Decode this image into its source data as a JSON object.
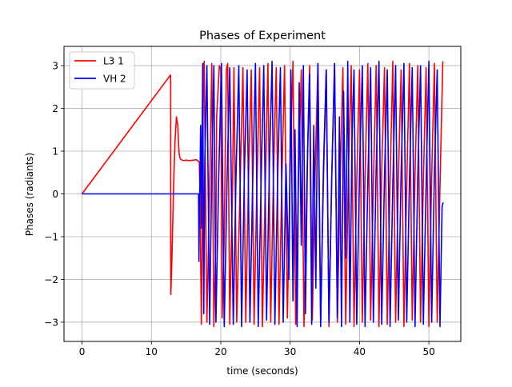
{
  "chart_data": {
    "type": "line",
    "title": "Phases of Experiment",
    "xlabel": "time  (seconds)",
    "ylabel": "Phases (radiants)",
    "xlim": [
      -2.6,
      54.6
    ],
    "ylim": [
      -3.45,
      3.45
    ],
    "x_ticks": [
      0,
      10,
      20,
      30,
      40,
      50
    ],
    "y_ticks": [
      -3,
      -2,
      -1,
      0,
      1,
      2,
      3
    ],
    "grid": true,
    "legend_position": "top-left",
    "series": [
      {
        "name": "L3 1",
        "color": "#ff0000",
        "x": [
          0,
          12.75,
          12.78,
          12.8,
          12.95,
          13.2,
          13.4,
          13.6,
          13.8,
          13.9,
          14.0,
          14.1,
          14.3,
          14.6,
          15.0,
          15.5,
          16.0,
          16.5,
          16.9,
          17.0,
          17.2,
          17.3,
          17.5,
          17.6,
          18.0,
          18.1,
          18.5,
          18.7,
          19.0,
          19.3,
          19.4,
          19.8,
          20.0,
          20.2,
          20.5,
          20.8,
          21.0,
          21.3,
          21.7,
          21.9,
          22.3,
          22.8,
          23.2,
          23.6,
          24.0,
          24.4,
          24.8,
          25.2,
          25.6,
          26.0,
          26.4,
          26.8,
          27.2,
          27.6,
          28.0,
          28.4,
          28.8,
          29.2,
          29.6,
          30.0,
          30.4,
          30.8,
          31.2,
          31.6,
          32.0,
          32.4,
          32.8,
          33.2,
          33.6,
          34.0,
          34.4,
          34.8,
          35.2,
          35.6,
          36.0,
          36.4,
          36.8,
          37.2,
          37.6,
          38.0,
          38.4,
          38.8,
          39.2,
          39.6,
          40.0,
          40.4,
          40.8,
          41.2,
          41.6,
          42.0,
          42.4,
          42.8,
          43.2,
          43.6,
          44.0,
          44.4,
          44.8,
          45.2,
          45.6,
          46.0,
          46.4,
          46.8,
          47.2,
          47.6,
          48.0,
          48.4,
          48.8,
          49.2,
          49.6,
          50.0,
          50.4,
          50.8,
          51.2,
          51.6,
          52.0
        ],
        "y": [
          0,
          2.78,
          2.6,
          -2.35,
          -1.6,
          0.2,
          1.2,
          1.8,
          1.6,
          1.2,
          0.95,
          0.85,
          0.8,
          0.78,
          0.79,
          0.78,
          0.79,
          0.8,
          0.74,
          -0.05,
          -3.05,
          -1.5,
          2.95,
          3.1,
          -3.0,
          -2.2,
          1.1,
          3.05,
          -3.1,
          -1.0,
          1.8,
          3.0,
          2.9,
          -2.9,
          -1.0,
          2.9,
          3.05,
          -3.05,
          0.2,
          2.95,
          -3.0,
          0.3,
          2.95,
          -3.0,
          0.4,
          2.9,
          -3.05,
          0.2,
          2.95,
          -3.1,
          0.1,
          3.05,
          -3.0,
          0.5,
          2.95,
          -3.05,
          0.3,
          3.0,
          -2.9,
          0.6,
          3.1,
          -3.05,
          0.4,
          2.9,
          -3.1,
          0.2,
          3.0,
          -2.95,
          0.5,
          3.05,
          -3.0,
          0.3,
          2.9,
          -3.1,
          0.4,
          3.05,
          -3.0,
          0.2,
          2.95,
          -3.05,
          0.5,
          3.0,
          -3.1,
          0.3,
          2.9,
          -3.0,
          0.4,
          3.05,
          -2.95,
          0.2,
          3.0,
          -3.1,
          0.5,
          2.95,
          -3.05,
          0.3,
          3.1,
          -3.0,
          0.4,
          2.9,
          -3.1,
          0.2,
          3.05,
          -2.95,
          0.5,
          3.0,
          -3.0,
          0.3,
          2.95,
          -3.1,
          0.4,
          3.05,
          -3.0,
          0.2,
          3.1
        ]
      },
      {
        "name": "VH 2",
        "color": "#0000ff",
        "x": [
          0,
          16.8,
          16.85,
          16.9,
          17.0,
          17.1,
          17.2,
          17.4,
          17.55,
          17.7,
          18.0,
          18.4,
          18.7,
          19.0,
          19.3,
          19.7,
          20.1,
          20.5,
          20.9,
          21.3,
          21.8,
          22.2,
          22.6,
          23.0,
          23.4,
          23.8,
          24.2,
          24.6,
          25.0,
          25.4,
          25.8,
          26.2,
          26.6,
          27.0,
          27.4,
          27.8,
          28.2,
          28.6,
          29.0,
          29.4,
          29.8,
          30.1,
          30.4,
          30.7,
          31.0,
          31.3,
          31.6,
          31.9,
          32.2,
          32.5,
          32.8,
          33.1,
          33.4,
          33.7,
          34.0,
          34.4,
          34.8,
          35.2,
          35.6,
          36.0,
          36.4,
          36.8,
          37.1,
          37.4,
          37.7,
          38.0,
          38.3,
          38.6,
          38.9,
          39.2,
          39.6,
          40.0,
          40.4,
          40.8,
          41.2,
          41.6,
          42.0,
          42.4,
          42.8,
          43.2,
          43.6,
          44.0,
          44.4,
          44.8,
          45.2,
          45.6,
          46.0,
          46.4,
          46.8,
          47.2,
          47.6,
          48.0,
          48.4,
          48.8,
          49.2,
          49.6,
          50.0,
          50.4,
          50.8,
          51.2,
          51.6,
          51.9,
          52.05
        ],
        "y": [
          0,
          0,
          -1.58,
          -0.3,
          0.3,
          1.6,
          -0.8,
          3.05,
          -2.8,
          0.8,
          3.0,
          -3.05,
          0.6,
          3.0,
          -3.0,
          0.4,
          3.05,
          -3.1,
          0.3,
          2.95,
          -3.05,
          0.4,
          3.0,
          -3.1,
          0.5,
          2.9,
          -3.0,
          0.3,
          3.05,
          -3.1,
          0.2,
          3.0,
          -2.95,
          0.6,
          3.1,
          -3.05,
          0.4,
          2.95,
          -3.0,
          0.7,
          -2.0,
          2.9,
          -2.5,
          1.5,
          -3.1,
          2.6,
          -1.2,
          3.0,
          -2.8,
          0.9,
          2.8,
          -3.05,
          1.6,
          -2.2,
          3.05,
          -3.1,
          0.6,
          2.9,
          -3.0,
          0.4,
          3.05,
          -2.9,
          1.8,
          -3.1,
          2.4,
          -1.5,
          3.1,
          -3.0,
          1.2,
          2.9,
          -3.05,
          0.5,
          3.0,
          -3.1,
          0.3,
          2.95,
          -3.0,
          0.6,
          3.1,
          -3.05,
          0.4,
          2.9,
          -3.1,
          0.2,
          3.0,
          -2.95,
          0.5,
          3.05,
          -3.0,
          0.3,
          2.95,
          -3.1,
          0.4,
          3.0,
          -3.05,
          0.2,
          3.1,
          -3.0,
          0.5,
          2.9,
          -3.1,
          -0.3,
          -0.2
        ]
      }
    ]
  }
}
